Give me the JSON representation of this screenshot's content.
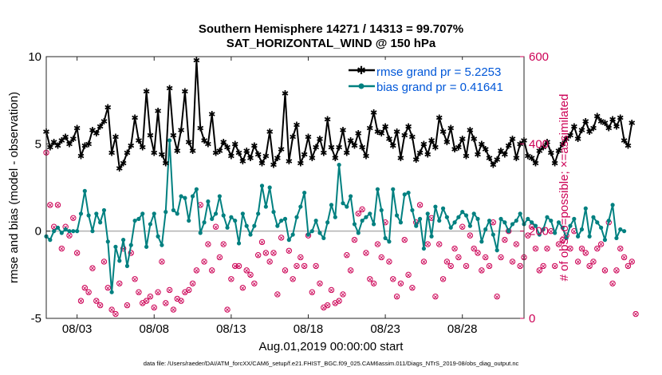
{
  "chart_data": {
    "type": "line",
    "title": "Southern Hemisphere 14271 / 14313 = 99.707%",
    "subtitle": "SAT_HORIZONTAL_WIND @ 150 hPa",
    "xlabel": "Aug.01,2019 00:00:00 start",
    "ylabel_left": "rmse and bias (model - observation)",
    "ylabel_right": "# of obs: o=possible; ×=assimilated",
    "footer": "data file: /Users/raeder/DAI/ATM_forcXX/CAM6_setup/f.e21.FHIST_BGC.f09_025.CAM6assim.011/Diags_NTrS_2019-08/obs_diag_output.nc",
    "x_ticks": [
      "08/03",
      "08/08",
      "08/13",
      "08/18",
      "08/23",
      "08/28"
    ],
    "x_tick_days": [
      3,
      8,
      13,
      18,
      23,
      28
    ],
    "xlim": [
      1.0,
      32.0
    ],
    "ylim_left": [
      -5,
      10
    ],
    "y_ticks_left": [
      "-5",
      "0",
      "5",
      "10"
    ],
    "ylim_right": [
      0,
      600
    ],
    "y_ticks_right": [
      "0",
      "200",
      "400",
      "600"
    ],
    "legend_location": "top-right",
    "colors": {
      "rmse": "#000000",
      "bias": "#008080",
      "obs": "#cc0055",
      "zero": "#b0b0b0"
    },
    "series": [
      {
        "name": "rmse grand pr = 5.2253",
        "axis": "left",
        "step_days": 0.25,
        "start_day": 1.0,
        "values": [
          5.7,
          4.8,
          5.1,
          4.9,
          5.2,
          5.4,
          5.0,
          5.3,
          5.9,
          4.3,
          4.9,
          5.0,
          5.8,
          5.6,
          6.0,
          6.3,
          7.1,
          4.5,
          5.4,
          3.6,
          3.9,
          4.5,
          4.9,
          6.5,
          5.2,
          4.8,
          8.0,
          5.5,
          4.5,
          6.9,
          4.4,
          3.9,
          8.2,
          5.5,
          4.6,
          5.8,
          8.0,
          5.1,
          4.6,
          9.8,
          5.9,
          5.2,
          5.0,
          6.7,
          4.5,
          4.6,
          5.1,
          4.8,
          4.3,
          5.0,
          4.5,
          4.0,
          4.6,
          4.2,
          4.9,
          4.4,
          3.9,
          4.3,
          5.7,
          3.8,
          4.2,
          4.7,
          7.9,
          4.0,
          5.4,
          6.1,
          3.9,
          4.4,
          5.4,
          4.2,
          4.8,
          5.3,
          4.5,
          6.4,
          4.8,
          4.2,
          4.8,
          5.8,
          4.5,
          5.2,
          4.9,
          5.6,
          4.8,
          4.3,
          5.9,
          6.8,
          5.7,
          5.6,
          6.0,
          5.3,
          4.9,
          5.7,
          4.2,
          5.5,
          6.0,
          5.4,
          4.1,
          4.5,
          5.0,
          4.4,
          5.2,
          4.8,
          6.5,
          5.7,
          5.1,
          5.9,
          4.7,
          4.8,
          5.3,
          4.3,
          5.8,
          5.3,
          4.4,
          5.0,
          4.7,
          4.2,
          3.8,
          4.1,
          4.6,
          4.4,
          4.9,
          5.3,
          4.2,
          5.0,
          5.2,
          4.3,
          4.2,
          3.9,
          4.6,
          4.8,
          5.1,
          4.5,
          3.9,
          4.6,
          5.0,
          5.3,
          5.5,
          6.0,
          5.3,
          5.8,
          6.3,
          5.7,
          5.9,
          6.6,
          6.3,
          6.2,
          5.9,
          6.4,
          6.0,
          6.5,
          5.2,
          4.9,
          6.2
        ]
      },
      {
        "name": "bias grand pr = 0.41641",
        "axis": "left",
        "step_days": 0.25,
        "start_day": 1.0,
        "values": [
          -0.3,
          -0.5,
          0.0,
          0.2,
          -0.1,
          0.1,
          0.0,
          0.0,
          0.0,
          1.0,
          2.3,
          0.9,
          0.0,
          1.0,
          0.5,
          1.2,
          -0.6,
          -3.5,
          -0.9,
          -1.7,
          -0.5,
          -2.0,
          -0.8,
          0.6,
          0.7,
          1.0,
          -0.9,
          0.4,
          1.0,
          -0.3,
          -0.8,
          1.1,
          5.2,
          1.2,
          1.0,
          2.0,
          1.9,
          0.6,
          2.0,
          2.4,
          -0.1,
          0.5,
          1.7,
          0.7,
          1.0,
          2.0,
          0.9,
          0.2,
          0.8,
          0.6,
          -0.7,
          1.0,
          0.3,
          -0.2,
          0.3,
          1.0,
          2.6,
          1.4,
          2.5,
          1.1,
          0.3,
          0.6,
          0.7,
          -0.5,
          -0.2,
          0.8,
          1.4,
          2.2,
          -0.2,
          0.0,
          0.6,
          -0.1,
          -0.4,
          0.5,
          1.5,
          0.8,
          3.8,
          1.6,
          1.4,
          2.0,
          0.4,
          -0.1,
          0.6,
          0.8,
          1.0,
          0.4,
          2.4,
          1.2,
          -0.4,
          -0.6,
          2.4,
          0.9,
          0.5,
          2.1,
          2.2,
          1.2,
          0.3,
          0.7,
          -1.0,
          1.0,
          -0.3,
          1.4,
          0.6,
          1.3,
          0.8,
          0.2,
          0.5,
          0.8,
          1.1,
          0.9,
          0.3,
          1.0,
          0.7,
          -0.6,
          0.1,
          0.6,
          -0.2,
          -1.1,
          0.7,
          0.5,
          0.0,
          0.4,
          0.6,
          1.0,
          0.4,
          0.7,
          0.5,
          0.3,
          -0.2,
          0.1,
          0.8,
          0.6,
          -0.1,
          0.5,
          0.2,
          -0.4,
          0.3,
          0.7,
          -0.3,
          0.1,
          1.3,
          -0.3,
          0.8,
          0.5,
          0.2,
          -0.5,
          0.6,
          1.5,
          -0.4,
          0.1,
          0.0
        ]
      },
      {
        "name": "obs possible / assimilated",
        "axis": "right",
        "step_days": 0.25,
        "start_day": 1.0,
        "values": [
          380,
          260,
          210,
          260,
          160,
          210,
          190,
          230,
          150,
          40,
          70,
          60,
          115,
          40,
          30,
          130,
          70,
          20,
          10,
          80,
          160,
          30,
          150,
          90,
          60,
          35,
          40,
          50,
          25,
          60,
          130,
          35,
          65,
          20,
          45,
          40,
          60,
          65,
          80,
          110,
          260,
          130,
          170,
          110,
          210,
          140,
          170,
          20,
          90,
          120,
          120,
          70,
          110,
          100,
          80,
          145,
          175,
          150,
          130,
          150,
          55,
          185,
          110,
          155,
          90,
          120,
          140,
          120,
          190,
          60,
          120,
          80,
          25,
          30,
          65,
          35,
          40,
          55,
          145,
          110,
          180,
          240,
          250,
          150,
          90,
          80,
          170,
          140,
          220,
          130,
          90,
          50,
          80,
          180,
          100,
          70,
          220,
          260,
          130,
          170,
          230,
          50,
          170,
          90,
          130,
          120,
          160,
          140,
          210,
          120,
          190,
          160,
          150,
          110,
          140,
          120,
          220,
          50,
          140,
          180,
          200,
          130,
          170,
          120,
          140,
          190,
          210,
          160,
          110,
          120,
          160,
          200,
          120,
          170,
          180,
          190,
          160,
          200,
          130,
          160,
          150,
          120,
          130,
          160,
          170,
          110,
          220,
          80,
          110,
          160,
          140,
          120,
          130,
          10
        ]
      }
    ]
  }
}
